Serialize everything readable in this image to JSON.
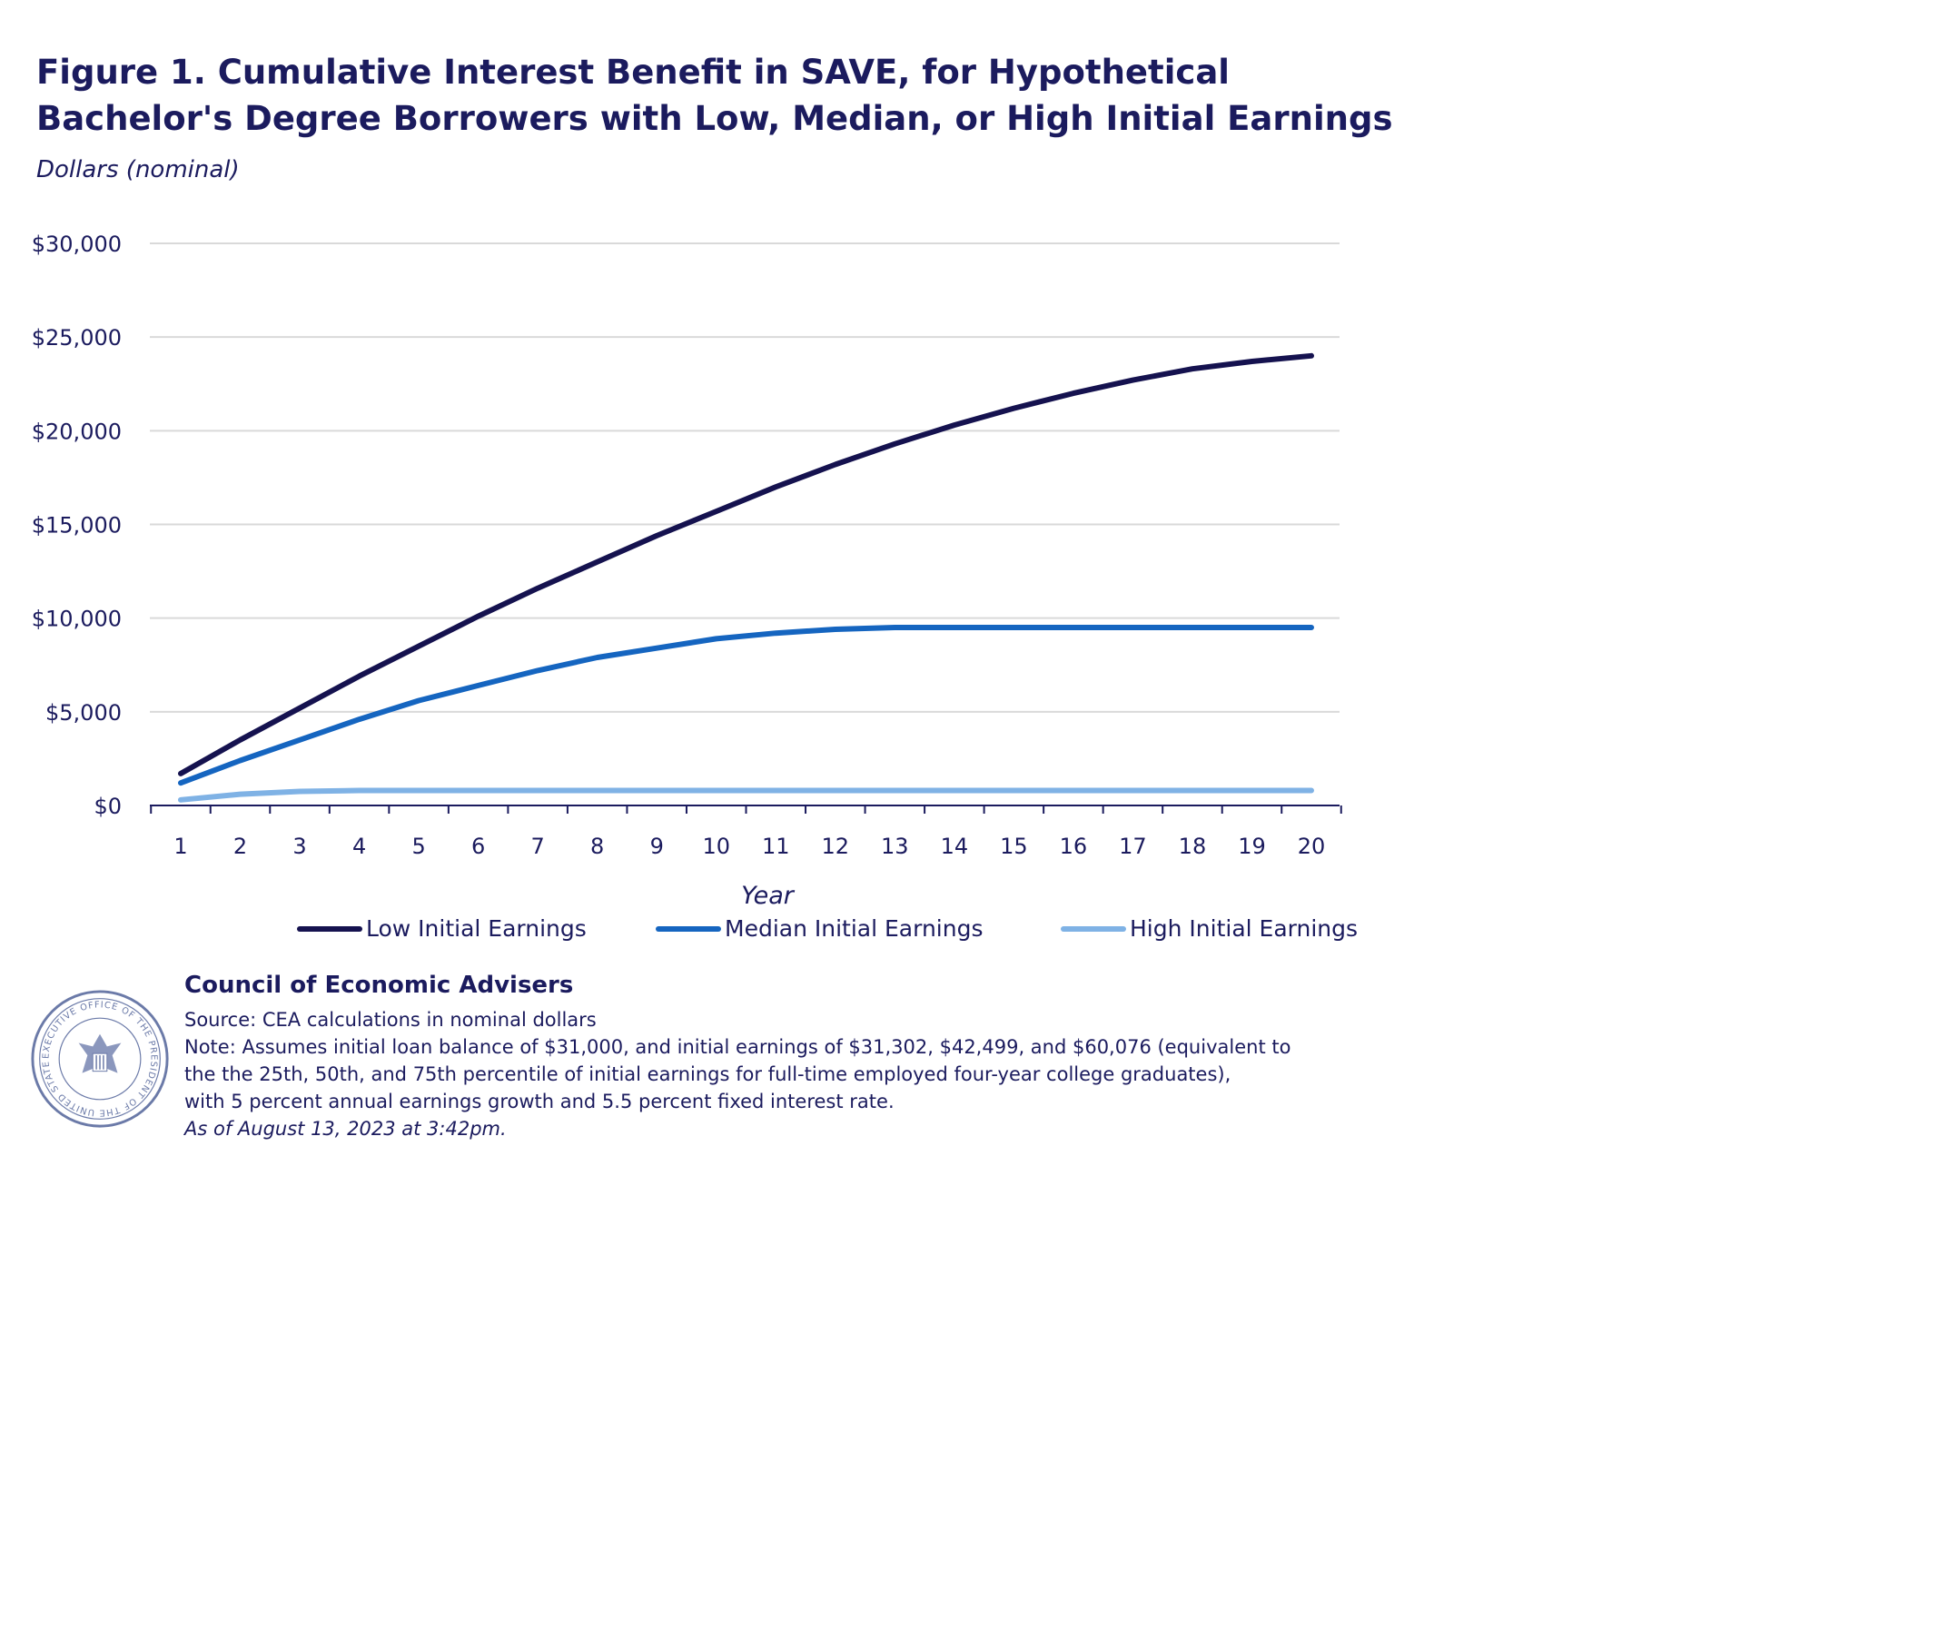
{
  "header": {
    "title": "Figure 1. Cumulative Interest Benefit in SAVE, for Hypothetical Bachelor's Degree Borrowers with Low, Median, or High Initial Earnings",
    "subtitle": "Dollars (nominal)"
  },
  "chart_data": {
    "type": "line",
    "title": "Figure 1. Cumulative Interest Benefit in SAVE, for Hypothetical Bachelor's Degree Borrowers with Low, Median, or High Initial Earnings",
    "subtitle": "Dollars (nominal)",
    "xlabel": "Year",
    "ylabel": "Dollars (nominal)",
    "x": [
      1,
      2,
      3,
      4,
      5,
      6,
      7,
      8,
      9,
      10,
      11,
      12,
      13,
      14,
      15,
      16,
      17,
      18,
      19,
      20
    ],
    "ylim": [
      0,
      30000
    ],
    "yticks": [
      0,
      5000,
      10000,
      15000,
      20000,
      25000,
      30000
    ],
    "ytick_labels": [
      "$0",
      "$5,000",
      "$10,000",
      "$15,000",
      "$20,000",
      "$25,000",
      "$30,000"
    ],
    "grid": true,
    "legend_position": "bottom",
    "series": [
      {
        "name": "Low Initial Earnings",
        "color": "#15124f",
        "values": [
          1700,
          3500,
          5200,
          6900,
          8500,
          10100,
          11600,
          13000,
          14400,
          15700,
          17000,
          18200,
          19300,
          20300,
          21200,
          22000,
          22700,
          23300,
          23700,
          24000
        ]
      },
      {
        "name": "Median Initial Earnings",
        "color": "#1565c0",
        "values": [
          1200,
          2400,
          3500,
          4600,
          5600,
          6400,
          7200,
          7900,
          8400,
          8900,
          9200,
          9400,
          9500,
          9500,
          9500,
          9500,
          9500,
          9500,
          9500,
          9500
        ]
      },
      {
        "name": "High Initial Earnings",
        "color": "#7fb2e5",
        "values": [
          300,
          600,
          750,
          800,
          800,
          800,
          800,
          800,
          800,
          800,
          800,
          800,
          800,
          800,
          800,
          800,
          800,
          800,
          800,
          800
        ]
      }
    ]
  },
  "footer": {
    "org": "Council of Economic Advisers",
    "source": "Source: CEA calculations in nominal dollars",
    "note_lines": [
      "Note: Assumes initial loan balance of $31,000, and initial earnings of $31,302, $42,499, and $60,076 (equivalent to",
      "the the 25th, 50th, and 75th percentile of initial earnings for full-time employed four-year college graduates),",
      "with 5 percent annual earnings growth and 5.5 percent fixed interest rate."
    ],
    "timestamp": "As of August 13, 2023 at 3:42pm.",
    "seal_text": "EXECUTIVE OFFICE OF THE PRESIDENT OF THE UNITED STATES"
  }
}
